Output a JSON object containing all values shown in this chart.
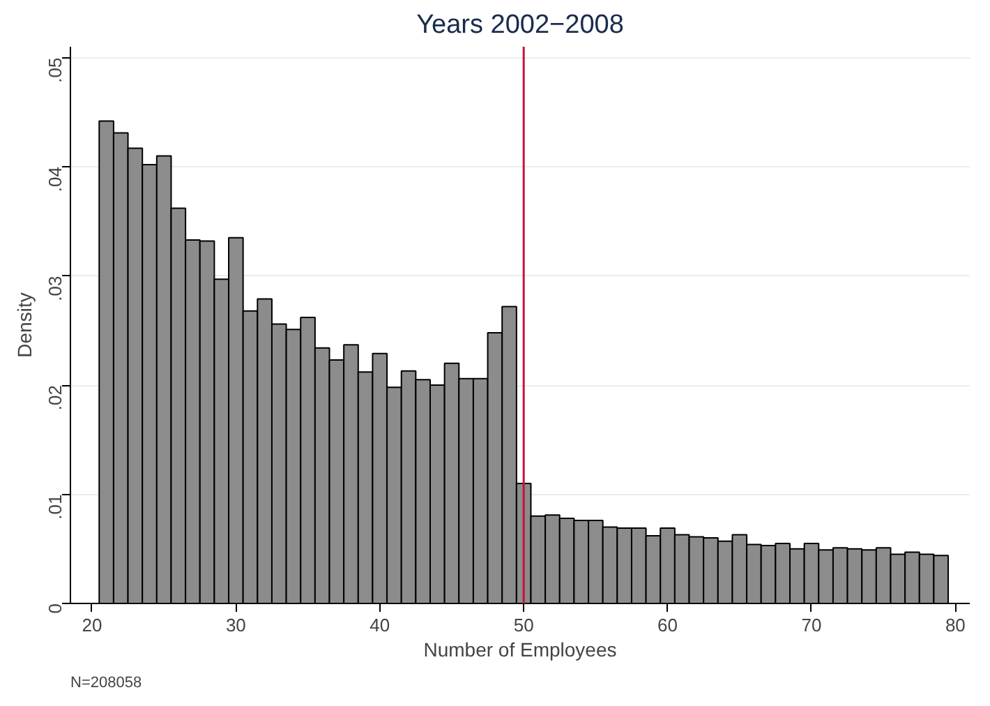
{
  "chart_data": {
    "type": "histogram",
    "title": "Years 2002−2008",
    "xlabel": "Number of Employees",
    "ylabel": "Density",
    "bins": [
      20.5,
      21.5,
      22.5,
      23.5,
      24.5,
      25.5,
      26.5,
      27.5,
      28.5,
      29.5,
      30.5,
      31.5,
      32.5,
      33.5,
      34.5,
      35.5,
      36.5,
      37.5,
      38.5,
      39.5,
      40.5,
      41.5,
      42.5,
      43.5,
      44.5,
      45.5,
      46.5,
      47.5,
      48.5,
      49.5,
      50.5,
      51.5,
      52.5,
      53.5,
      54.5,
      55.5,
      56.5,
      57.5,
      58.5,
      59.5,
      60.5,
      61.5,
      62.5,
      63.5,
      64.5,
      65.5,
      66.5,
      67.5,
      68.5,
      69.5,
      70.5,
      71.5,
      72.5,
      73.5,
      74.5,
      75.5,
      76.5,
      77.5,
      78.5,
      79.5
    ],
    "values": [
      0.0442,
      0.0431,
      0.0417,
      0.0402,
      0.041,
      0.0362,
      0.0333,
      0.0332,
      0.0297,
      0.0335,
      0.0268,
      0.0279,
      0.0256,
      0.0251,
      0.0262,
      0.0234,
      0.0223,
      0.0237,
      0.0212,
      0.0229,
      0.0198,
      0.0213,
      0.0205,
      0.02,
      0.022,
      0.0206,
      0.0206,
      0.0248,
      0.0272,
      0.011,
      0.008,
      0.0081,
      0.0078,
      0.0076,
      0.0076,
      0.007,
      0.0069,
      0.0069,
      0.0062,
      0.0069,
      0.0063,
      0.0061,
      0.006,
      0.0057,
      0.0063,
      0.0054,
      0.0053,
      0.0055,
      0.005,
      0.0055,
      0.0049,
      0.0051,
      0.005,
      0.0049,
      0.0051,
      0.0045,
      0.0047,
      0.0045,
      0.0044
    ],
    "color": "#8c8c8c",
    "xlim": [
      18.5,
      81
    ],
    "xticks": [
      20,
      30,
      40,
      50,
      60,
      70,
      80
    ],
    "ylim": [
      0,
      0.051
    ],
    "yticks": [
      {
        "value": 0,
        "label": "0"
      },
      {
        "value": 0.01,
        "label": ".01"
      },
      {
        "value": 0.02,
        "label": ".02"
      },
      {
        "value": 0.03,
        "label": ".03"
      },
      {
        "value": 0.04,
        "label": ".04"
      },
      {
        "value": 0.05,
        "label": ".05"
      }
    ],
    "grid": "y",
    "ref_lines": [
      {
        "axis": "x",
        "value": 50,
        "color": "#c8103e"
      }
    ],
    "annotations": [
      "N=208058"
    ]
  }
}
